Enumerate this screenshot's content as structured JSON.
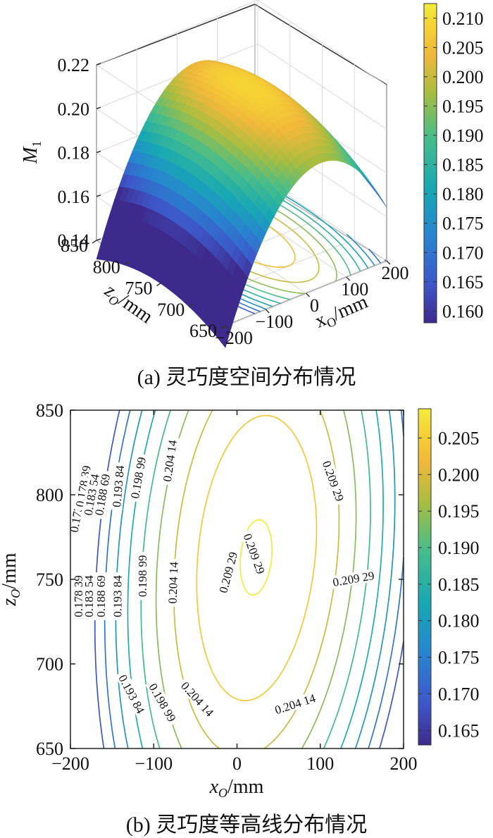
{
  "chart_data": [
    {
      "panel": "a",
      "type": "surface",
      "caption": "(a) 灵巧度空间分布情况",
      "xlabel": "x",
      "xlabel_sub": "O",
      "xlabel_unit": "/mm",
      "ylabel": "z",
      "ylabel_sub": "O",
      "ylabel_unit": "/mm",
      "zlabel": "M",
      "zlabel_sub": "1",
      "x_ticks": [
        "−200",
        "−100",
        "0",
        "100",
        "200"
      ],
      "y_ticks": [
        "650",
        "700",
        "750",
        "800",
        "850"
      ],
      "z_ticks": [
        "0.14",
        "0.16",
        "0.18",
        "0.20",
        "0.22"
      ],
      "xlim": [
        -200,
        200
      ],
      "ylim": [
        650,
        850
      ],
      "zlim": [
        0.14,
        0.22
      ],
      "colorbar_ticks": [
        "0.160",
        "0.165",
        "0.170",
        "0.175",
        "0.180",
        "0.185",
        "0.190",
        "0.195",
        "0.200",
        "0.205",
        "0.210"
      ],
      "colorbar_range": [
        0.158,
        0.2125
      ],
      "surface_values": {
        "x": [
          -200,
          -100,
          0,
          100,
          200
        ],
        "z_rows": [
          650,
          700,
          750,
          800,
          850
        ],
        "M1": [
          [
            0.158,
            0.185,
            0.2,
            0.204,
            0.2
          ],
          [
            0.165,
            0.195,
            0.206,
            0.208,
            0.205
          ],
          [
            0.17,
            0.199,
            0.209,
            0.209,
            0.207
          ],
          [
            0.169,
            0.197,
            0.207,
            0.209,
            0.21
          ],
          [
            0.166,
            0.193,
            0.205,
            0.21,
            0.2125
          ]
        ]
      }
    },
    {
      "panel": "b",
      "type": "contour",
      "caption": "(b) 灵巧度等高线分布情况",
      "xlabel": "x",
      "xlabel_sub": "O",
      "xlabel_unit": "/mm",
      "ylabel": "z",
      "ylabel_sub": "O",
      "ylabel_unit": "/mm",
      "xlim": [
        -200,
        200
      ],
      "ylim": [
        650,
        850
      ],
      "x_ticks": [
        "−200",
        "−100",
        "0",
        "100",
        "200"
      ],
      "y_ticks": [
        "650",
        "700",
        "750",
        "800",
        "850"
      ],
      "levels": [
        0.16834,
        0.17324,
        0.17839,
        0.18354,
        0.18869,
        0.19384,
        0.19899,
        0.20414,
        0.20929
      ],
      "contour_labels": [
        "0.173 24",
        "0.178 39",
        "0.183 54",
        "0.188 69",
        "0.193 84",
        "0.198 99",
        "0.204 14",
        "0.209 29"
      ],
      "colorbar_ticks": [
        "0.165",
        "0.170",
        "0.175",
        "0.180",
        "0.185",
        "0.190",
        "0.195",
        "0.200",
        "0.205"
      ],
      "colorbar_range": [
        0.163,
        0.209
      ],
      "grid": false
    }
  ]
}
